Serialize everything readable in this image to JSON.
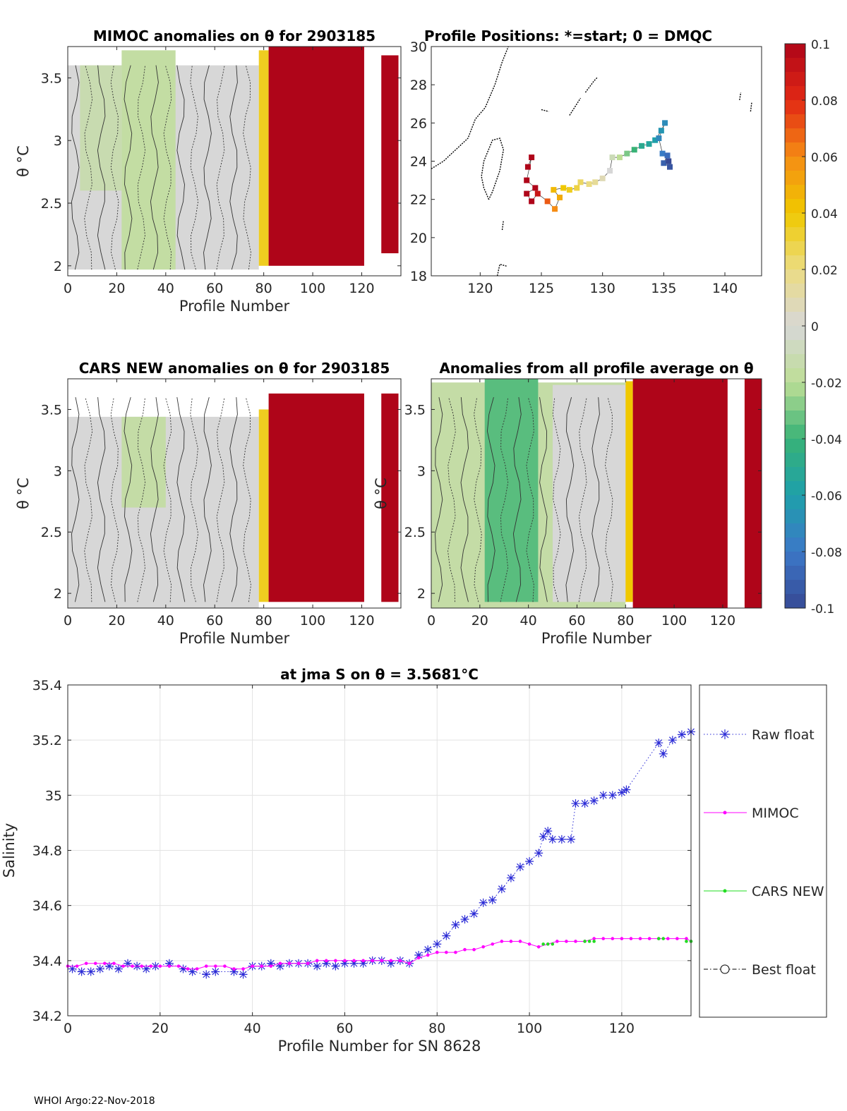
{
  "chart_data": [
    {
      "id": "mimoc",
      "type": "heatmap",
      "title": "MIMOC anomalies on θ  for 2903185",
      "xlabel": "Profile Number",
      "ylabel": "θ °C",
      "xlim": [
        0,
        136
      ],
      "ylim": [
        1.92,
        3.75
      ],
      "xticks": [
        "0",
        "20",
        "40",
        "60",
        "80",
        "100",
        "120"
      ],
      "xtick_values": [
        0,
        20,
        40,
        60,
        80,
        100,
        120
      ],
      "yticks": [
        "2",
        "2.5",
        "3",
        "3.5"
      ],
      "ytick_values": [
        2,
        2.5,
        3,
        3.5
      ],
      "regions": [
        {
          "x0": 0,
          "x1": 78,
          "y0": 1.97,
          "y1": 3.6,
          "anomaly": 0.0
        },
        {
          "x0": 5,
          "x1": 22,
          "y0": 2.6,
          "y1": 3.6,
          "anomaly": -0.012
        },
        {
          "x0": 22,
          "x1": 44,
          "y0": 1.97,
          "y1": 3.72,
          "anomaly": -0.016
        },
        {
          "x0": 78,
          "x1": 82,
          "y0": 2.0,
          "y1": 3.72,
          "anomaly": 0.035
        },
        {
          "x0": 82,
          "x1": 121,
          "y0": 2.0,
          "y1": 3.75,
          "anomaly": 0.1
        },
        {
          "x0": 128,
          "x1": 135,
          "y0": 2.1,
          "y1": 3.68,
          "anomaly": 0.1
        }
      ]
    },
    {
      "id": "positions",
      "type": "scatter",
      "title": "Profile Positions: *=start; 0 = DMQC",
      "xlim": [
        116,
        143
      ],
      "ylim": [
        18,
        30
      ],
      "xticks": [
        "120",
        "125",
        "130",
        "135",
        "140"
      ],
      "xtick_values": [
        120,
        125,
        130,
        135,
        140
      ],
      "yticks": [
        "18",
        "20",
        "22",
        "24",
        "26",
        "28",
        "30"
      ],
      "ytick_values": [
        18,
        20,
        22,
        24,
        26,
        28,
        30
      ],
      "track": [
        {
          "lon": 123.9,
          "lat": 23.7,
          "anomaly": 0.1
        },
        {
          "lon": 124.2,
          "lat": 24.2,
          "anomaly": 0.1
        },
        {
          "lon": 123.8,
          "lat": 23.0,
          "anomaly": 0.1
        },
        {
          "lon": 124.5,
          "lat": 22.6,
          "anomaly": 0.1
        },
        {
          "lon": 123.8,
          "lat": 22.3,
          "anomaly": 0.1
        },
        {
          "lon": 124.2,
          "lat": 21.9,
          "anomaly": 0.1
        },
        {
          "lon": 124.7,
          "lat": 22.3,
          "anomaly": 0.09
        },
        {
          "lon": 125.5,
          "lat": 21.9,
          "anomaly": 0.07
        },
        {
          "lon": 126.1,
          "lat": 21.5,
          "anomaly": 0.06
        },
        {
          "lon": 126.5,
          "lat": 22.1,
          "anomaly": 0.05
        },
        {
          "lon": 126.0,
          "lat": 22.5,
          "anomaly": 0.045
        },
        {
          "lon": 126.8,
          "lat": 22.6,
          "anomaly": 0.04
        },
        {
          "lon": 127.3,
          "lat": 22.5,
          "anomaly": 0.035
        },
        {
          "lon": 127.9,
          "lat": 22.6,
          "anomaly": 0.03
        },
        {
          "lon": 128.2,
          "lat": 22.9,
          "anomaly": 0.025
        },
        {
          "lon": 128.9,
          "lat": 22.8,
          "anomaly": 0.02
        },
        {
          "lon": 129.4,
          "lat": 22.9,
          "anomaly": 0.015
        },
        {
          "lon": 130.0,
          "lat": 23.1,
          "anomaly": 0.008
        },
        {
          "lon": 130.6,
          "lat": 23.5,
          "anomaly": 0.0
        },
        {
          "lon": 130.8,
          "lat": 24.2,
          "anomaly": -0.01
        },
        {
          "lon": 131.4,
          "lat": 24.2,
          "anomaly": -0.02
        },
        {
          "lon": 132.0,
          "lat": 24.4,
          "anomaly": -0.03
        },
        {
          "lon": 132.6,
          "lat": 24.6,
          "anomaly": -0.04
        },
        {
          "lon": 133.2,
          "lat": 24.8,
          "anomaly": -0.05
        },
        {
          "lon": 133.8,
          "lat": 24.9,
          "anomaly": -0.055
        },
        {
          "lon": 134.3,
          "lat": 25.1,
          "anomaly": -0.06
        },
        {
          "lon": 134.8,
          "lat": 25.6,
          "anomaly": -0.065
        },
        {
          "lon": 135.1,
          "lat": 26.0,
          "anomaly": -0.07
        },
        {
          "lon": 134.6,
          "lat": 25.2,
          "anomaly": -0.072
        },
        {
          "lon": 134.9,
          "lat": 24.4,
          "anomaly": -0.078
        },
        {
          "lon": 135.3,
          "lat": 24.3,
          "anomaly": -0.085
        },
        {
          "lon": 135.0,
          "lat": 23.9,
          "anomaly": -0.09
        },
        {
          "lon": 135.5,
          "lat": 23.7,
          "anomaly": -0.095
        },
        {
          "lon": 135.4,
          "lat": 24.0,
          "anomaly": -0.1
        }
      ],
      "coast": [
        [
          [
            116.0,
            23.6
          ],
          [
            117.0,
            24.0
          ],
          [
            118.0,
            24.6
          ],
          [
            119.0,
            25.2
          ],
          [
            119.6,
            26.2
          ],
          [
            120.4,
            26.8
          ],
          [
            121.2,
            28.0
          ],
          [
            121.8,
            29.2
          ],
          [
            122.3,
            30.0
          ]
        ],
        [
          [
            120.7,
            22.0
          ],
          [
            120.3,
            22.6
          ],
          [
            120.1,
            23.2
          ],
          [
            120.3,
            24.0
          ],
          [
            121.0,
            25.1
          ],
          [
            121.6,
            25.2
          ],
          [
            121.9,
            24.6
          ],
          [
            121.6,
            23.5
          ],
          [
            121.0,
            22.4
          ],
          [
            120.7,
            22.0
          ]
        ],
        [
          [
            125.0,
            26.7
          ],
          [
            125.6,
            26.6
          ]
        ],
        [
          [
            127.3,
            26.4
          ],
          [
            127.8,
            26.9
          ],
          [
            128.2,
            27.3
          ]
        ],
        [
          [
            128.6,
            27.6
          ],
          [
            129.3,
            28.2
          ],
          [
            129.6,
            28.4
          ]
        ],
        [
          [
            121.4,
            18.0
          ],
          [
            121.6,
            18.6
          ],
          [
            122.2,
            18.5
          ]
        ],
        [
          [
            121.8,
            20.4
          ],
          [
            121.9,
            20.9
          ]
        ],
        [
          [
            141.2,
            27.2
          ],
          [
            141.3,
            27.6
          ]
        ],
        [
          [
            142.1,
            26.6
          ],
          [
            142.2,
            27.1
          ]
        ]
      ]
    },
    {
      "id": "cars",
      "type": "heatmap",
      "title": "CARS NEW anomalies on θ for 2903185",
      "xlabel": "Profile Number",
      "ylabel": "θ °C",
      "xlim": [
        0,
        136
      ],
      "ylim": [
        1.88,
        3.75
      ],
      "xticks": [
        "0",
        "20",
        "40",
        "60",
        "80",
        "100",
        "120"
      ],
      "xtick_values": [
        0,
        20,
        40,
        60,
        80,
        100,
        120
      ],
      "yticks": [
        "2",
        "2.5",
        "3",
        "3.5"
      ],
      "ytick_values": [
        2,
        2.5,
        3,
        3.5
      ],
      "regions": [
        {
          "x0": 0,
          "x1": 78,
          "y0": 1.88,
          "y1": 3.44,
          "anomaly": 0.0
        },
        {
          "x0": 22,
          "x1": 40,
          "y0": 2.7,
          "y1": 3.44,
          "anomaly": -0.015
        },
        {
          "x0": 78,
          "x1": 82,
          "y0": 1.93,
          "y1": 3.5,
          "anomaly": 0.035
        },
        {
          "x0": 82,
          "x1": 121,
          "y0": 1.93,
          "y1": 3.63,
          "anomaly": 0.1
        },
        {
          "x0": 128,
          "x1": 135,
          "y0": 1.93,
          "y1": 3.63,
          "anomaly": 0.1
        }
      ]
    },
    {
      "id": "avg",
      "type": "heatmap",
      "title": "Anomalies from all profile average on θ",
      "xlabel": "Profile Number",
      "ylabel": "θ °C",
      "xlim": [
        0,
        136
      ],
      "ylim": [
        1.88,
        3.75
      ],
      "xticks": [
        "0",
        "20",
        "40",
        "60",
        "80",
        "100",
        "120"
      ],
      "xtick_values": [
        0,
        20,
        40,
        60,
        80,
        100,
        120
      ],
      "yticks": [
        "2",
        "2.5",
        "3",
        "3.5"
      ],
      "ytick_values": [
        2,
        2.5,
        3,
        3.5
      ],
      "regions": [
        {
          "x0": 0,
          "x1": 80,
          "y0": 1.88,
          "y1": 3.72,
          "anomaly": -0.015
        },
        {
          "x0": 22,
          "x1": 44,
          "y0": 1.93,
          "y1": 3.75,
          "anomaly": -0.035
        },
        {
          "x0": 50,
          "x1": 80,
          "y0": 1.93,
          "y1": 3.7,
          "anomaly": 0.0
        },
        {
          "x0": 80,
          "x1": 83,
          "y0": 1.93,
          "y1": 3.73,
          "anomaly": 0.04
        },
        {
          "x0": 83,
          "x1": 122,
          "y0": 1.88,
          "y1": 3.75,
          "anomaly": 0.1
        },
        {
          "x0": 129,
          "x1": 136,
          "y0": 1.88,
          "y1": 3.75,
          "anomaly": 0.1
        }
      ]
    },
    {
      "id": "colorbar",
      "type": "colorbar",
      "range": [
        -0.1,
        0.1
      ],
      "ticks": [
        "0.1",
        "0.08",
        "0.06",
        "0.04",
        "0.02",
        "0",
        "-0.02",
        "-0.04",
        "-0.06",
        "-0.08",
        "-0.1"
      ],
      "tick_values": [
        0.1,
        0.08,
        0.06,
        0.04,
        0.02,
        0,
        -0.02,
        -0.04,
        -0.06,
        -0.08,
        -0.1
      ]
    },
    {
      "id": "salinity",
      "type": "line",
      "title": "at jma S on θ = 3.5681°C",
      "xlabel": "Profile Number for SN 8628",
      "ylabel": "Salinity",
      "xlim": [
        0,
        135
      ],
      "ylim": [
        34.2,
        35.4
      ],
      "xticks": [
        "0",
        "20",
        "40",
        "60",
        "80",
        "100",
        "120"
      ],
      "xtick_values": [
        0,
        20,
        40,
        60,
        80,
        100,
        120
      ],
      "yticks": [
        "34.2",
        "34.4",
        "34.6",
        "34.8",
        "35",
        "35.2",
        "35.4"
      ],
      "ytick_values": [
        34.2,
        34.4,
        34.6,
        34.8,
        35.0,
        35.2,
        35.4
      ],
      "grid": true,
      "legend": [
        "Raw float",
        "MIMOC",
        "CARS NEW",
        "Best float"
      ],
      "series": [
        {
          "name": "Raw float",
          "x": [
            1,
            3,
            5,
            7,
            9,
            11,
            13,
            15,
            17,
            19,
            22,
            25,
            27,
            30,
            32,
            36,
            38,
            40,
            42,
            44,
            46,
            48,
            50,
            52,
            54,
            56,
            58,
            60,
            62,
            64,
            66,
            68,
            70,
            72,
            74,
            76,
            78,
            80,
            82,
            84,
            86,
            88,
            90,
            92,
            94,
            96,
            98,
            100,
            102,
            103,
            104,
            105,
            107,
            109,
            110,
            112,
            114,
            116,
            118,
            120,
            121,
            128,
            129,
            131,
            133,
            135
          ],
          "values": [
            34.37,
            34.36,
            34.36,
            34.37,
            34.38,
            34.37,
            34.39,
            34.38,
            34.37,
            34.38,
            34.39,
            34.37,
            34.36,
            34.35,
            34.36,
            34.36,
            34.35,
            34.38,
            34.38,
            34.39,
            34.38,
            34.39,
            34.39,
            34.39,
            34.38,
            34.39,
            34.38,
            34.39,
            34.39,
            34.39,
            34.4,
            34.4,
            34.39,
            34.4,
            34.39,
            34.42,
            34.44,
            34.46,
            34.49,
            34.53,
            34.55,
            34.57,
            34.61,
            34.62,
            34.66,
            34.7,
            34.74,
            34.76,
            34.79,
            34.85,
            34.87,
            34.84,
            34.84,
            34.84,
            34.97,
            34.97,
            34.98,
            35.0,
            35.0,
            35.01,
            35.02,
            35.19,
            35.15,
            35.2,
            35.22,
            35.23
          ]
        },
        {
          "name": "MIMOC",
          "x": [
            0,
            2,
            4,
            6,
            8,
            10,
            12,
            14,
            16,
            18,
            20,
            22,
            24,
            26,
            28,
            30,
            32,
            34,
            36,
            38,
            40,
            42,
            44,
            46,
            48,
            50,
            52,
            54,
            56,
            58,
            60,
            62,
            64,
            66,
            68,
            70,
            72,
            74,
            76,
            78,
            80,
            82,
            84,
            86,
            88,
            90,
            92,
            94,
            96,
            98,
            100,
            102,
            104,
            106,
            108,
            110,
            112,
            114,
            116,
            118,
            120,
            122,
            124,
            126,
            128,
            130,
            132,
            134,
            135
          ],
          "values": [
            34.38,
            34.38,
            34.39,
            34.39,
            34.39,
            34.39,
            34.38,
            34.38,
            34.38,
            34.38,
            34.38,
            34.38,
            34.38,
            34.37,
            34.37,
            34.38,
            34.38,
            34.38,
            34.37,
            34.37,
            34.38,
            34.38,
            34.38,
            34.39,
            34.39,
            34.39,
            34.39,
            34.4,
            34.4,
            34.4,
            34.4,
            34.4,
            34.4,
            34.4,
            34.4,
            34.4,
            34.4,
            34.39,
            34.41,
            34.42,
            34.43,
            34.43,
            34.43,
            34.44,
            34.44,
            34.45,
            34.46,
            34.47,
            34.47,
            34.47,
            34.46,
            34.45,
            34.46,
            34.47,
            34.47,
            34.47,
            34.47,
            34.48,
            34.48,
            34.48,
            34.48,
            34.48,
            34.48,
            34.48,
            34.48,
            34.48,
            34.48,
            34.48,
            34.47
          ]
        },
        {
          "name": "CARS NEW",
          "x": [
            103,
            104,
            105,
            112,
            113,
            114,
            128,
            129,
            134,
            135
          ],
          "values": [
            34.46,
            34.46,
            34.46,
            34.47,
            34.47,
            34.47,
            34.48,
            34.48,
            34.47,
            34.47
          ]
        },
        {
          "name": "Best float",
          "x": [],
          "values": []
        }
      ]
    }
  ],
  "footer": "WHOI Argo:22-Nov-2018"
}
